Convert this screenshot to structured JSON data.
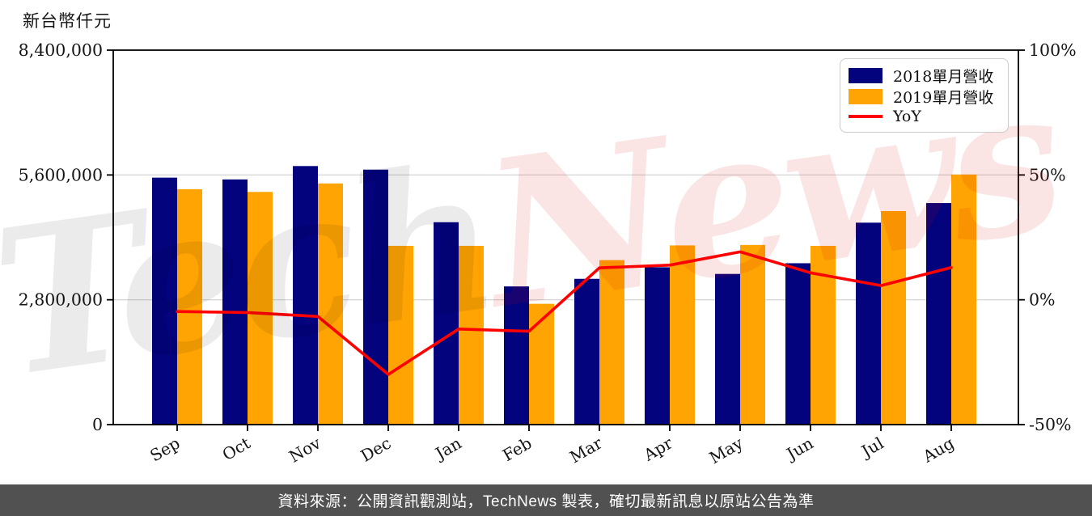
{
  "watermark": {
    "gray": "Tech",
    "red": "News"
  },
  "footer": {
    "text": "資料來源：公開資訊觀測站，TechNews 製表，確切最新訊息以原站公告為準"
  },
  "colors": {
    "bar_2018": "#03037E",
    "bar_2019": "#FFA402",
    "yoy_line": "#FF0000",
    "footer_bg": "#515151",
    "grid": "#d8d8d8",
    "axis": "#000000"
  },
  "chart_data": {
    "type": "bar",
    "title": "",
    "unit_label": "新台幣仟元",
    "categories": [
      "Sep",
      "Oct",
      "Nov",
      "Dec",
      "Jan",
      "Feb",
      "Mar",
      "Apr",
      "May",
      "Jun",
      "Jul",
      "Aug"
    ],
    "series": [
      {
        "name": "2018單月營收",
        "type": "bar",
        "axis": "left",
        "color": "#03037E",
        "values": [
          5540000,
          5500000,
          5800000,
          5720000,
          4540000,
          3100000,
          3270000,
          3530000,
          3380000,
          3620000,
          4530000,
          4970000
        ]
      },
      {
        "name": "2019單月營收",
        "type": "bar",
        "axis": "left",
        "color": "#FFA402",
        "values": [
          5280000,
          5220000,
          5410000,
          4010000,
          4010000,
          2710000,
          3690000,
          4020000,
          4030000,
          4010000,
          4790000,
          5610000
        ]
      },
      {
        "name": "YoY",
        "type": "line",
        "axis": "right",
        "color": "#FF0000",
        "values": [
          -4.7,
          -5.1,
          -6.7,
          -29.9,
          -11.7,
          -12.6,
          12.8,
          13.9,
          19.2,
          10.8,
          5.7,
          12.9
        ]
      }
    ],
    "left_axis": {
      "range": [
        0,
        8400000
      ],
      "ticks": [
        "0",
        "2,800,000",
        "5,600,000",
        "8,400,000"
      ],
      "grid_values": [
        2800000,
        5600000
      ]
    },
    "right_axis": {
      "range": [
        -50,
        100
      ],
      "ticks": [
        "-50%",
        "0%",
        "50%",
        "100%"
      ]
    },
    "grid": "horizontal",
    "legend_position": "top-right"
  }
}
